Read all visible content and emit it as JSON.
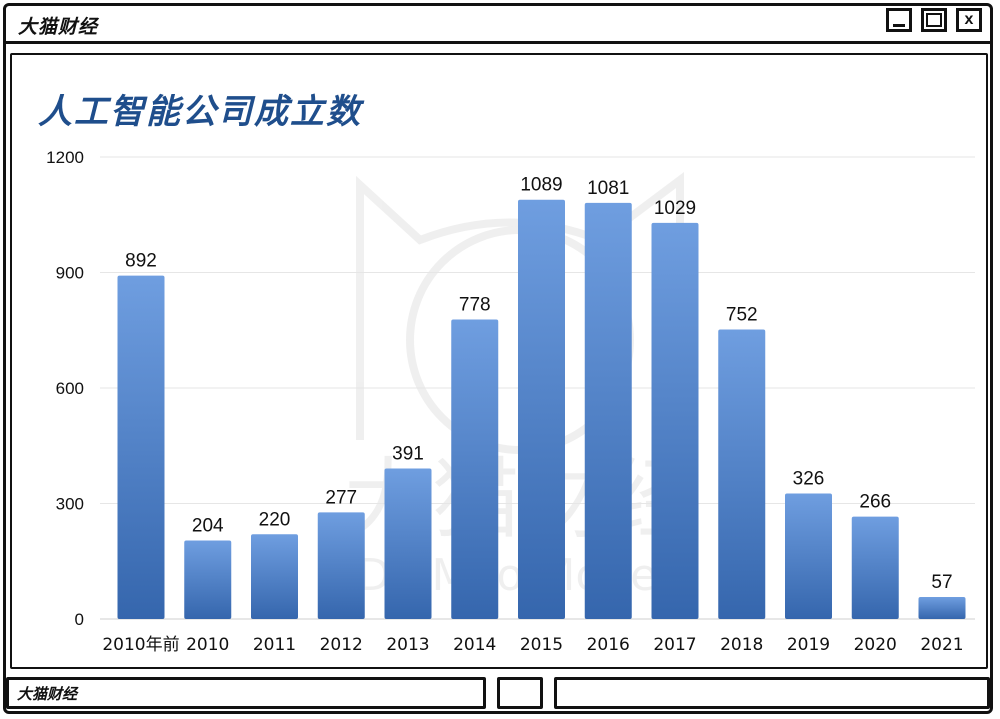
{
  "window": {
    "title": "大猫财经",
    "buttons": {
      "minimize": "minimize",
      "maximize": "maximize",
      "close": "x"
    }
  },
  "statusbar": {
    "label": "大猫财经"
  },
  "watermark": {
    "cn": "大猫财经",
    "en": "Da Mao Money"
  },
  "colors": {
    "bar_top": "#6f9ee0",
    "bar_bottom": "#3566ad",
    "title": "#1f4e8c",
    "grid": "#e6e6e6"
  },
  "chart_data": {
    "type": "bar",
    "title": "人工智能公司成立数",
    "categories": [
      "2010年前",
      "2010",
      "2011",
      "2012",
      "2013",
      "2014",
      "2015",
      "2016",
      "2017",
      "2018",
      "2019",
      "2020",
      "2021"
    ],
    "values": [
      892,
      204,
      220,
      277,
      391,
      778,
      1089,
      1081,
      1029,
      752,
      326,
      266,
      57
    ],
    "ylim": [
      0,
      1200
    ],
    "yticks": [
      0,
      300,
      600,
      900,
      1200
    ],
    "grid": true,
    "data_labels": true,
    "xlabel": "",
    "ylabel": ""
  }
}
